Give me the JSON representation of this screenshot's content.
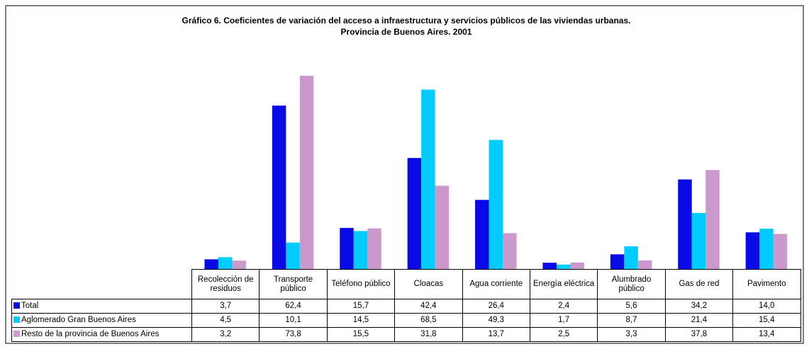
{
  "chart_data": {
    "type": "bar",
    "title": "Gráfico 6. Coeficientes de variación del acceso a infraestructura y servicios públicos de las viviendas urbanas.",
    "subtitle": "Provincia de Buenos Aires. 2001",
    "categories": [
      "Recolección de residuos",
      "Transporte público",
      "Teléfono público",
      "Cloacas",
      "Agua corriente",
      "Energía eléctrica",
      "Alumbrado público",
      "Gas de red",
      "Pavimento"
    ],
    "series": [
      {
        "name": "Total",
        "color": "#0a0ae6",
        "values": [
          3.7,
          62.4,
          15.7,
          42.4,
          26.4,
          2.4,
          5.6,
          34.2,
          14.0
        ],
        "value_labels": [
          "3,7",
          "62,4",
          "15,7",
          "42,4",
          "26,4",
          "2,4",
          "5,6",
          "34,2",
          "14,0"
        ]
      },
      {
        "name": "Aglomerado Gran Buenos Aires",
        "color": "#00ccff",
        "values": [
          4.5,
          10.1,
          14.5,
          68.5,
          49.3,
          1.7,
          8.7,
          21.4,
          15.4
        ],
        "value_labels": [
          "4,5",
          "10,1",
          "14,5",
          "68,5",
          "49,3",
          "1,7",
          "8,7",
          "21,4",
          "15,4"
        ]
      },
      {
        "name": "Resto de la provincia de Buenos Aires",
        "color": "#cc99cc",
        "values": [
          3.2,
          73.8,
          15.5,
          31.8,
          13.7,
          2.5,
          3.3,
          37.8,
          13.4
        ],
        "value_labels": [
          "3,2",
          "73,8",
          "15,5",
          "31,8",
          "13,7",
          "2,5",
          "3,3",
          "37,8",
          "13,4"
        ]
      }
    ]
  }
}
